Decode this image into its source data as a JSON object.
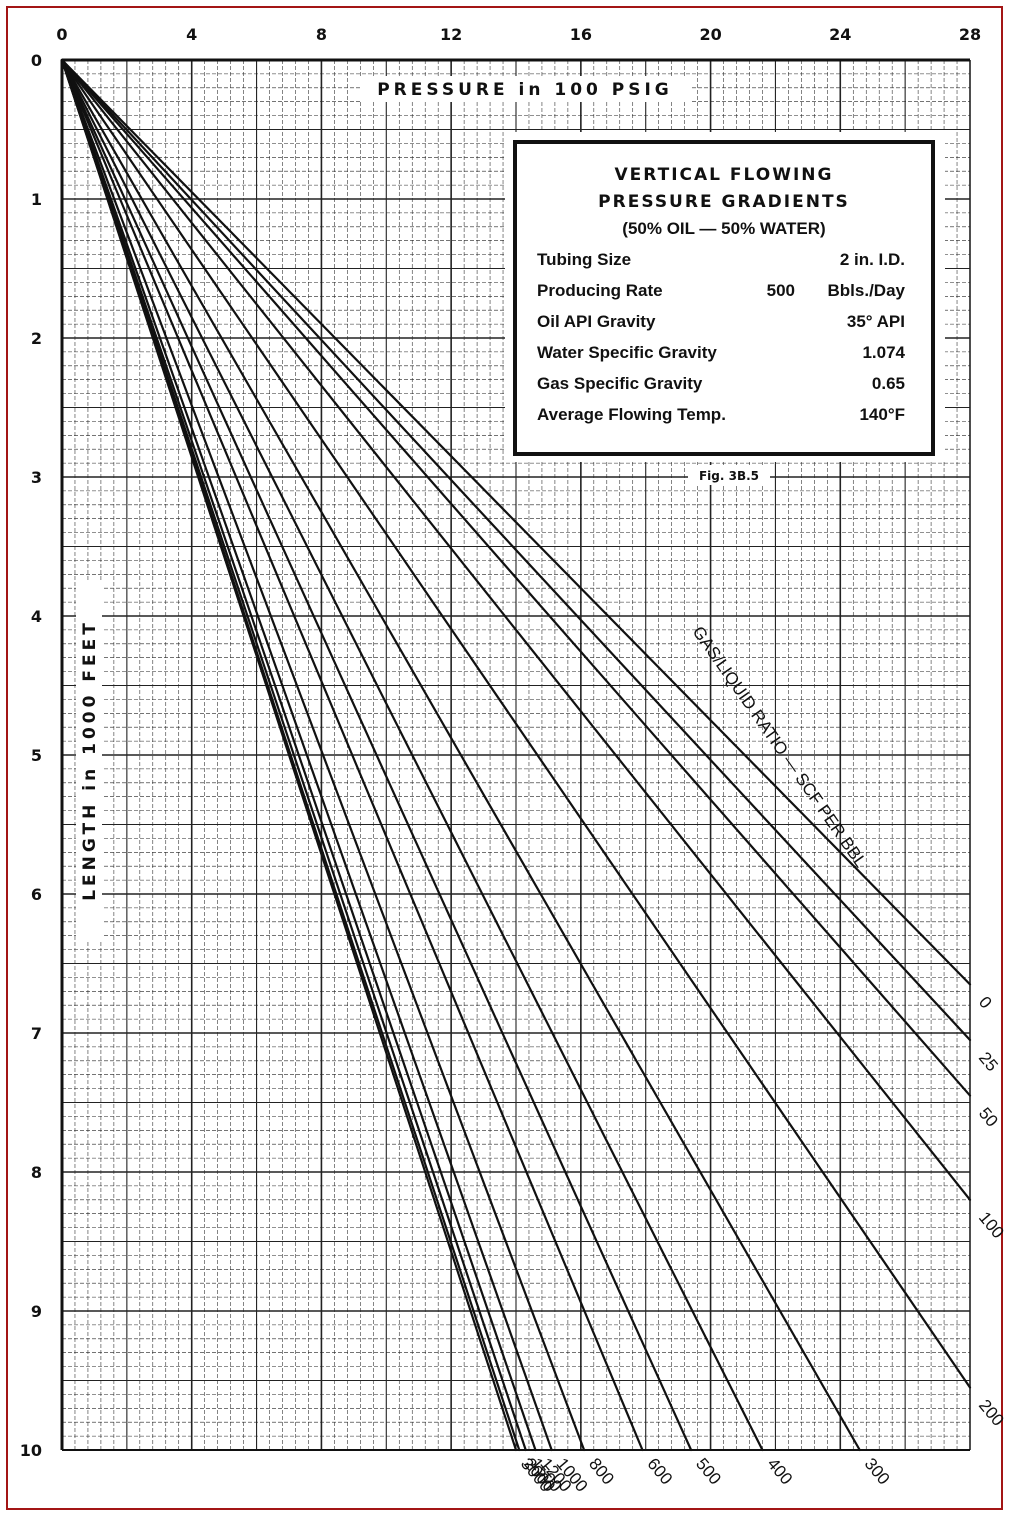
{
  "chart_data": {
    "type": "line",
    "xlabel": "PRESSURE in 100 PSIG",
    "ylabel": "LENGTH in 1000 FEET",
    "xlim": [
      0,
      28
    ],
    "ylim": [
      0,
      10
    ],
    "y_inverted": true,
    "x_axis_position": "top",
    "x_ticks": [
      "0",
      "4",
      "8",
      "12",
      "16",
      "20",
      "24",
      "28"
    ],
    "y_ticks": [
      "0",
      "1",
      "2",
      "3",
      "4",
      "5",
      "6",
      "7",
      "8",
      "9",
      "10"
    ],
    "grid": true,
    "series_title": "GAS/LIQUID RATIO — SCF PER BBL",
    "series": [
      {
        "name": "0",
        "x": [
          0,
          28
        ],
        "y": [
          0,
          6.65
        ]
      },
      {
        "name": "25",
        "x": [
          0,
          28
        ],
        "y": [
          0,
          7.05
        ]
      },
      {
        "name": "50",
        "x": [
          0,
          28
        ],
        "y": [
          0,
          7.45
        ]
      },
      {
        "name": "100",
        "x": [
          0,
          28
        ],
        "y": [
          0,
          8.2
        ]
      },
      {
        "name": "200",
        "x": [
          0,
          28
        ],
        "y": [
          0,
          9.55
        ]
      },
      {
        "name": "300",
        "x": [
          0,
          24.6
        ],
        "y": [
          0,
          10
        ]
      },
      {
        "name": "400",
        "x": [
          0,
          21.6
        ],
        "y": [
          0,
          10
        ]
      },
      {
        "name": "500",
        "x": [
          0,
          19.4
        ],
        "y": [
          0,
          10
        ]
      },
      {
        "name": "600",
        "x": [
          0,
          17.9
        ],
        "y": [
          0,
          10
        ]
      },
      {
        "name": "800",
        "x": [
          0,
          16.1
        ],
        "y": [
          0,
          10
        ]
      },
      {
        "name": "1000",
        "x": [
          0,
          15.1
        ],
        "y": [
          0,
          10
        ]
      },
      {
        "name": "1200",
        "x": [
          0,
          14.6
        ],
        "y": [
          0,
          10
        ]
      },
      {
        "name": "1500",
        "x": [
          0,
          14.3
        ],
        "y": [
          0,
          10
        ]
      },
      {
        "name": "2000",
        "x": [
          0,
          14.1
        ],
        "y": [
          0,
          10
        ]
      },
      {
        "name": "3000",
        "x": [
          0,
          14.0
        ],
        "y": [
          0,
          10
        ]
      }
    ]
  },
  "legend_box": {
    "title_line1": "VERTICAL FLOWING",
    "title_line2": "PRESSURE GRADIENTS",
    "subtitle": "(50% OIL — 50% WATER)",
    "rows": [
      {
        "label": "Tubing Size",
        "mid": "",
        "value": "2  in. I.D."
      },
      {
        "label": "Producing Rate",
        "mid": "500",
        "value": "Bbls./Day"
      },
      {
        "label": "Oil API Gravity",
        "mid": "",
        "value": "35° API"
      },
      {
        "label": "Water Specific Gravity",
        "mid": "",
        "value": "1.074"
      },
      {
        "label": "Gas Specific Gravity",
        "mid": "",
        "value": "0.65"
      },
      {
        "label": "Average Flowing Temp.",
        "mid": "",
        "value": "140°F"
      }
    ]
  },
  "figure_label": "Fig. 3B.5",
  "colors": {
    "frame": "#a31515",
    "ink": "#111111",
    "grid": "#222222",
    "paper": "#ffffff"
  }
}
